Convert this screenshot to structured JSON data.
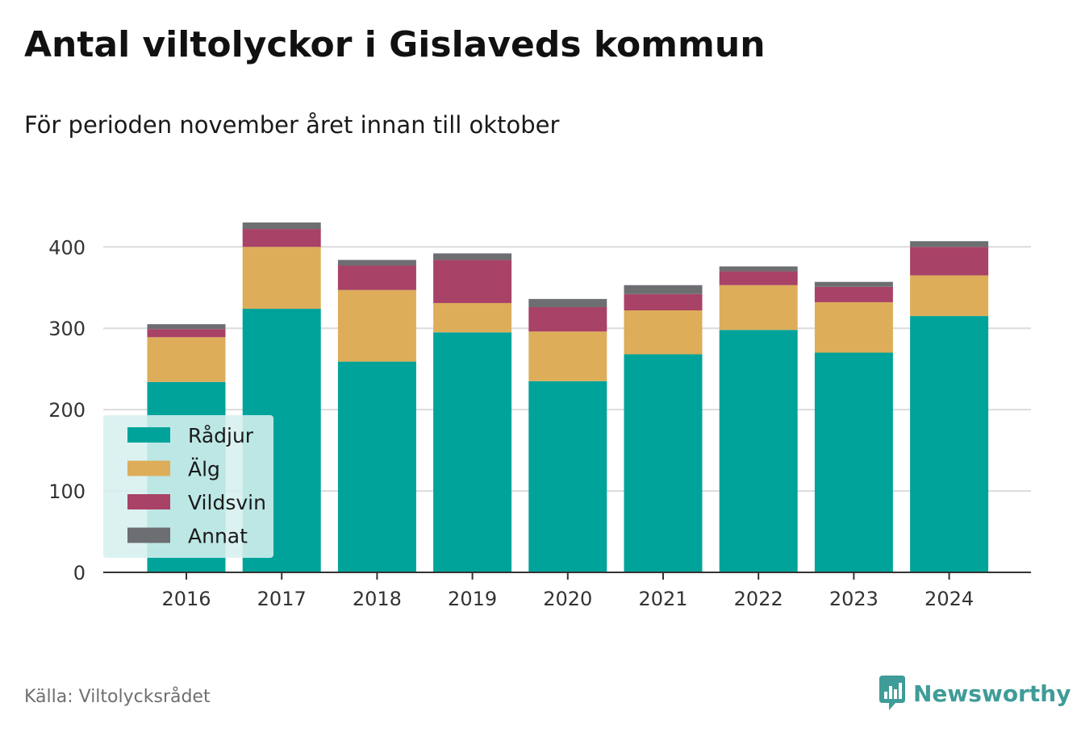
{
  "title": "Antal viltolyckor i Gislaveds kommun",
  "subtitle": "För perioden november året innan till oktober",
  "source": "Källa: Viltolycksrådet",
  "brand": {
    "name": "Newsworthy",
    "icon": "newsworthy-logo-icon",
    "color": "#3f9c98"
  },
  "chart_data": {
    "type": "bar",
    "stacked": true,
    "categories": [
      "2016",
      "2017",
      "2018",
      "2019",
      "2020",
      "2021",
      "2022",
      "2023",
      "2024"
    ],
    "series": [
      {
        "name": "Rådjur",
        "color": "#00a39a",
        "values": [
          234,
          324,
          259,
          295,
          235,
          268,
          298,
          270,
          315
        ]
      },
      {
        "name": "Älg",
        "color": "#ddad59",
        "values": [
          55,
          76,
          88,
          36,
          61,
          54,
          55,
          62,
          50
        ]
      },
      {
        "name": "Vildsvin",
        "color": "#a84266",
        "values": [
          10,
          22,
          30,
          53,
          30,
          20,
          17,
          19,
          35
        ]
      },
      {
        "name": "Annat",
        "color": "#6d6e72",
        "values": [
          6,
          8,
          7,
          8,
          10,
          11,
          6,
          6,
          7
        ]
      }
    ],
    "yticks": [
      0,
      100,
      200,
      300,
      400
    ],
    "ylim": [
      0,
      430
    ],
    "grid": true,
    "legend": "bottom-left"
  }
}
